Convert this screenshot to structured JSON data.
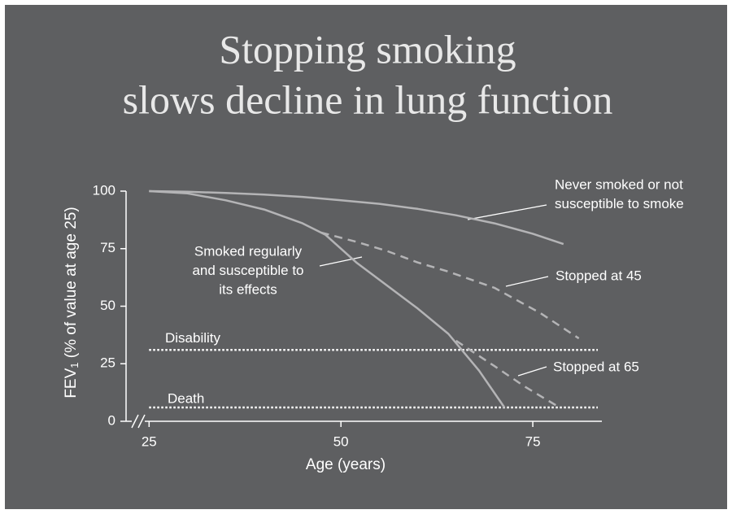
{
  "chart_data": {
    "type": "line",
    "title": [
      "Stopping smoking",
      "slows decline in lung function"
    ],
    "xlabel": "Age (years)",
    "ylabel": {
      "main": "FEV",
      "subscript": "1",
      "rest": " (% of value at age 25)"
    },
    "xlim": [
      22,
      84
    ],
    "ylim": [
      0,
      100
    ],
    "xticks": [
      25,
      50,
      75
    ],
    "yticks": [
      0,
      25,
      50,
      75,
      100
    ],
    "series": [
      {
        "name": "Never smoked or not susceptible to smoke",
        "color": "#b4b4b6",
        "style": "solid",
        "x": [
          25,
          30,
          35,
          40,
          45,
          50,
          55,
          60,
          65,
          70,
          75,
          79
        ],
        "values": [
          100,
          99.7,
          99.2,
          98.5,
          97.5,
          96,
          94.5,
          92.3,
          89.5,
          86,
          81.5,
          77
        ]
      },
      {
        "name": "Smoked regularly and susceptible to its effects",
        "color": "#b4b4b6",
        "style": "solid",
        "x": [
          25,
          30,
          35,
          40,
          45,
          48,
          52,
          56,
          60,
          64,
          68,
          71.3
        ],
        "values": [
          100,
          99,
          96,
          92,
          86,
          81,
          69,
          59,
          49,
          38,
          22,
          6
        ]
      },
      {
        "name": "Stopped at 45",
        "color": "#b4b4b6",
        "style": "dashed",
        "x": [
          47.4,
          52,
          56,
          60,
          64,
          70,
          76,
          81
        ],
        "values": [
          82,
          78,
          74,
          69,
          65,
          58,
          47,
          36
        ]
      },
      {
        "name": "Stopped at 65",
        "color": "#b4b4b6",
        "style": "dashed",
        "x": [
          65,
          70,
          74,
          78
        ],
        "values": [
          35,
          24,
          15,
          7
        ]
      }
    ],
    "reference_lines": [
      {
        "label": "Disability",
        "value": 31
      },
      {
        "label": "Death",
        "value": 6
      }
    ],
    "annotations": [
      {
        "lines": [
          "Never smoked or not",
          "susceptible to smoke"
        ]
      },
      {
        "lines": [
          "Smoked regularly",
          "and susceptible to",
          "its effects"
        ]
      },
      {
        "lines": [
          "Stopped at 45"
        ]
      },
      {
        "lines": [
          "Stopped at 65"
        ]
      }
    ]
  }
}
